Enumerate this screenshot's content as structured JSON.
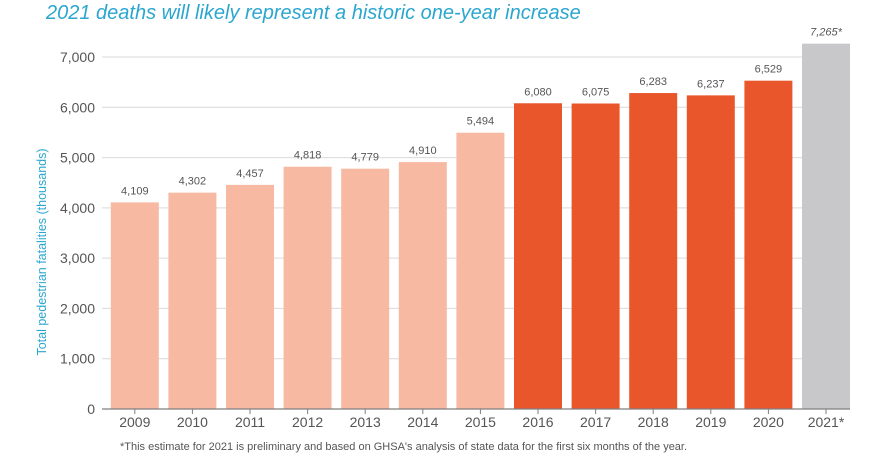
{
  "colors": {
    "title": "#2ba6cf",
    "ylabel": "#2ba6cf",
    "light": "#f7b9a2",
    "dark": "#e9562b",
    "estimate": "#c8c8ca",
    "grid": "#d9d9d9",
    "axis": "#7f7f7f",
    "text": "#555555"
  },
  "chart_data": {
    "type": "bar",
    "title": "2021 deaths will likely represent a historic one-year increase",
    "xlabel": "",
    "ylabel": "Total pedestrian fatalities (thousands)",
    "ylim": [
      0,
      7000
    ],
    "yticks": [
      0,
      1000,
      2000,
      3000,
      4000,
      5000,
      6000,
      7000
    ],
    "ytick_labels": [
      "0",
      "1,000",
      "2,000",
      "3,000",
      "4,000",
      "5,000",
      "6,000",
      "7,000"
    ],
    "grid": true,
    "categories": [
      "2009",
      "2010",
      "2011",
      "2012",
      "2013",
      "2014",
      "2015",
      "2016",
      "2017",
      "2018",
      "2019",
      "2020",
      "2021*"
    ],
    "values": [
      4109,
      4302,
      4457,
      4818,
      4779,
      4910,
      5494,
      6080,
      6075,
      6283,
      6237,
      6529,
      7265
    ],
    "value_labels": [
      "4,109",
      "4,302",
      "4,457",
      "4,818",
      "4,779",
      "4,910",
      "5,494",
      "6,080",
      "6,075",
      "6,283",
      "6,237",
      "6,529",
      "7,265*"
    ],
    "bar_styles": [
      "light",
      "light",
      "light",
      "light",
      "light",
      "light",
      "light",
      "dark",
      "dark",
      "dark",
      "dark",
      "dark",
      "estimate"
    ]
  },
  "footnote": "*This estimate for 2021 is preliminary and based on GHSA's analysis of state data for the first six months of the year."
}
